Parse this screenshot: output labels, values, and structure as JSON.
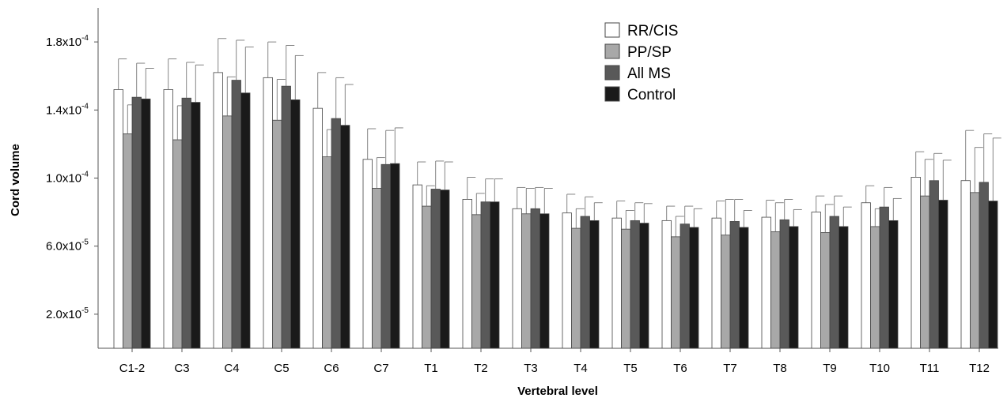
{
  "chart_data": {
    "type": "bar",
    "title": "",
    "xlabel": "Vertebral level",
    "ylabel": "Cord volume",
    "categories": [
      "C1-2",
      "C3",
      "C4",
      "C5",
      "C6",
      "C7",
      "T1",
      "T2",
      "T3",
      "T4",
      "T5",
      "T6",
      "T7",
      "T8",
      "T9",
      "T10",
      "T11",
      "T12"
    ],
    "ylim": [
      0,
      0.0002
    ],
    "yticks": [
      {
        "value": 2e-05,
        "mantissa": "2.0x10",
        "exp": "-5"
      },
      {
        "value": 6e-05,
        "mantissa": "6.0x10",
        "exp": "-5"
      },
      {
        "value": 0.0001,
        "mantissa": "1.0x10",
        "exp": "-4"
      },
      {
        "value": 0.00014,
        "mantissa": "1.4x10",
        "exp": "-4"
      },
      {
        "value": 0.00018,
        "mantissa": "1.8x10",
        "exp": "-4"
      }
    ],
    "legend_position": "top-center",
    "grid": false,
    "series": [
      {
        "name": "RR/CIS",
        "color": "#ffffff",
        "values": [
          0.000152,
          0.000152,
          0.000162,
          0.000159,
          0.000141,
          0.000111,
          9.6e-05,
          8.75e-05,
          8.2e-05,
          7.95e-05,
          7.65e-05,
          7.5e-05,
          7.65e-05,
          7.7e-05,
          8e-05,
          8.55e-05,
          0.0001005,
          9.85e-05
        ],
        "errors": [
          1.8e-05,
          1.8e-05,
          2e-05,
          2.1e-05,
          2.1e-05,
          1.8e-05,
          1.35e-05,
          1.3e-05,
          1.25e-05,
          1.1e-05,
          1e-05,
          8.5e-06,
          1e-05,
          1e-05,
          9.5e-06,
          1e-05,
          1.5e-05,
          2.95e-05
        ]
      },
      {
        "name": "PP/SP",
        "color": "#a8a8a8",
        "values": [
          0.000126,
          0.0001225,
          0.0001365,
          0.000134,
          0.0001125,
          9.4e-05,
          8.35e-05,
          7.85e-05,
          7.9e-05,
          7.05e-05,
          7e-05,
          6.55e-05,
          6.65e-05,
          6.85e-05,
          6.8e-05,
          7.15e-05,
          8.95e-05,
          9.15e-05
        ],
        "errors": [
          1.7e-05,
          2e-05,
          2.3e-05,
          2.4e-05,
          1.6e-05,
          1.8e-05,
          1.2e-05,
          1.25e-05,
          1.5e-05,
          1.15e-05,
          1.1e-05,
          1.2e-05,
          2.1e-05,
          1.7e-05,
          1.65e-05,
          1.05e-05,
          2.15e-05,
          2.65e-05
        ]
      },
      {
        "name": "All MS",
        "color": "#595959",
        "values": [
          0.0001475,
          0.000147,
          0.0001575,
          0.000154,
          0.000135,
          0.000108,
          9.35e-05,
          8.6e-05,
          8.2e-05,
          7.75e-05,
          7.5e-05,
          7.3e-05,
          7.45e-05,
          7.55e-05,
          7.75e-05,
          8.3e-05,
          9.85e-05,
          9.75e-05
        ],
        "errors": [
          2e-05,
          2.1e-05,
          2.35e-05,
          2.4e-05,
          2.4e-05,
          2e-05,
          1.65e-05,
          1.35e-05,
          1.25e-05,
          1.15e-05,
          1.05e-05,
          1.05e-05,
          1.3e-05,
          1.2e-05,
          1.2e-05,
          1.15e-05,
          1.6e-05,
          2.85e-05
        ]
      },
      {
        "name": "Control",
        "color": "#1a1a1a",
        "values": [
          0.0001465,
          0.0001445,
          0.00015,
          0.000146,
          0.000131,
          0.0001085,
          9.3e-05,
          8.6e-05,
          7.9e-05,
          7.5e-05,
          7.35e-05,
          7.1e-05,
          7.1e-05,
          7.15e-05,
          7.15e-05,
          7.5e-05,
          8.7e-05,
          8.65e-05
        ],
        "errors": [
          1.8e-05,
          2.2e-05,
          2.7e-05,
          2.6e-05,
          2.4e-05,
          2.1e-05,
          1.65e-05,
          1.35e-05,
          1.5e-05,
          1.05e-05,
          1.15e-05,
          1.1e-05,
          1e-05,
          1e-05,
          1.15e-05,
          1.3e-05,
          2.35e-05,
          3.7e-05
        ]
      }
    ]
  }
}
